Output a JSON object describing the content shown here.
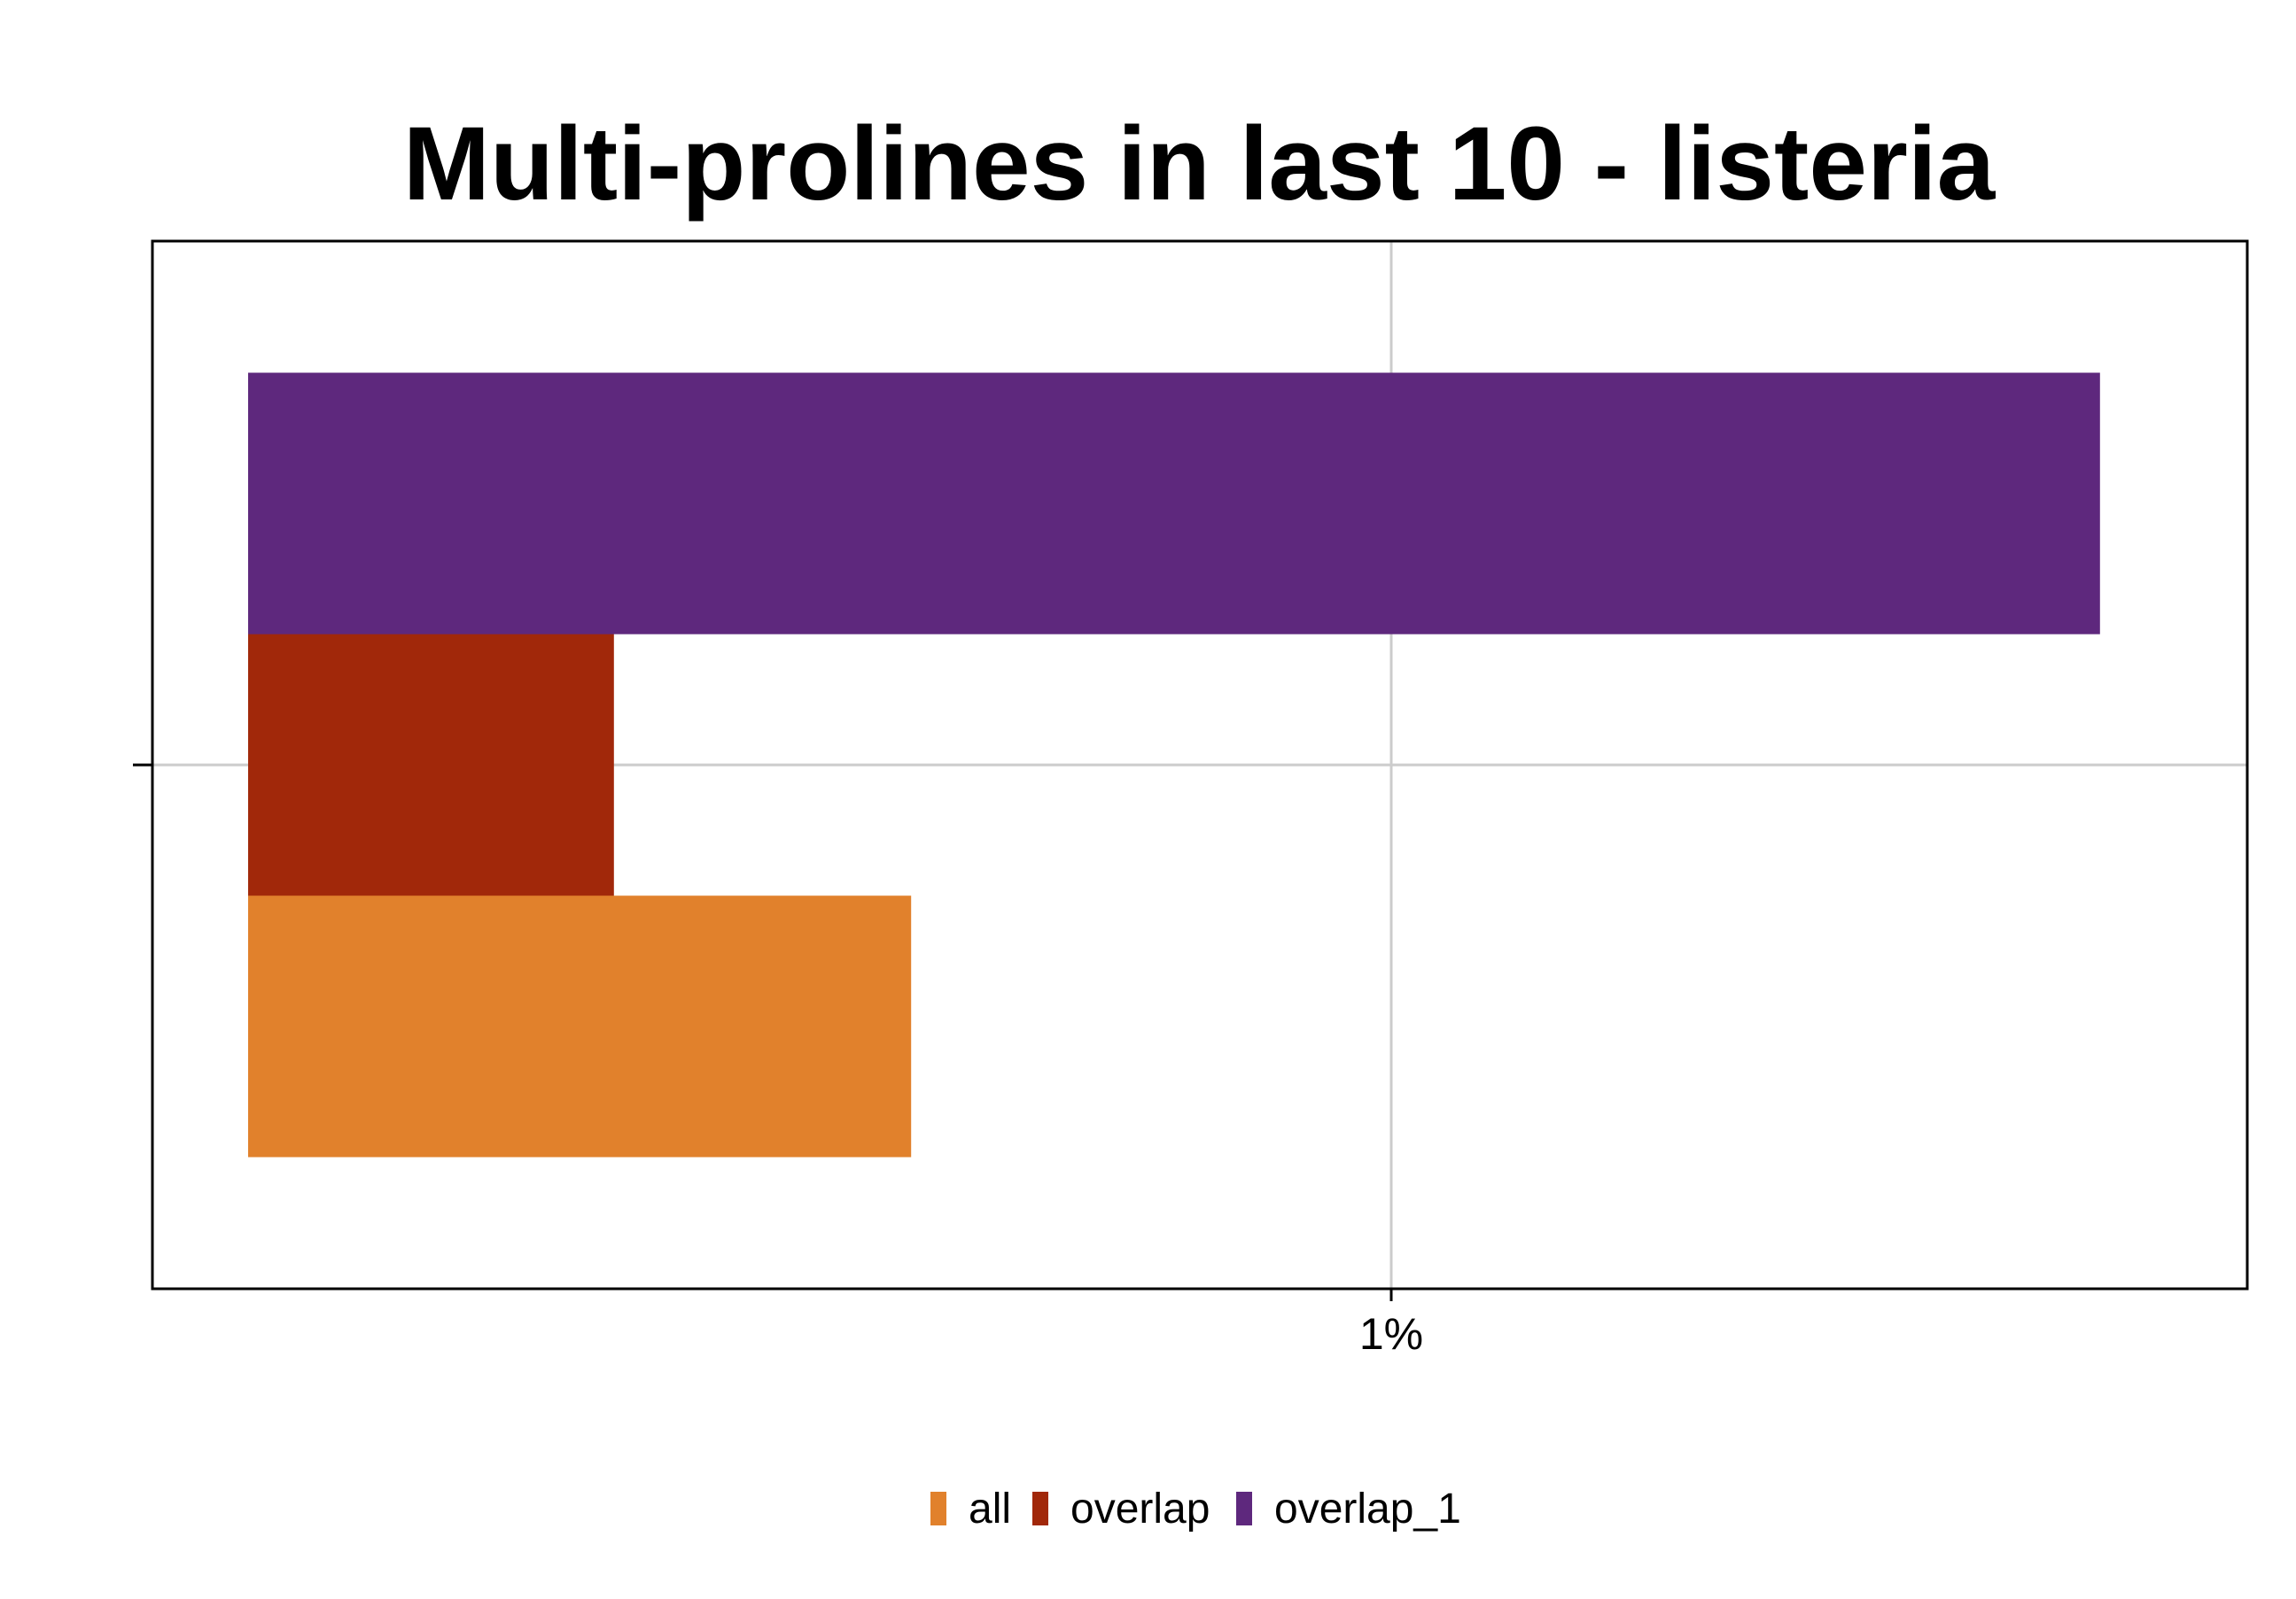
{
  "chart_data": {
    "type": "bar",
    "orientation": "horizontal",
    "title": "Multi-prolines in last 10 - listeria",
    "xlabel": "",
    "ylabel": "",
    "x_ticks": [
      {
        "value": 1.0,
        "label": "1%"
      }
    ],
    "xlim": [
      0.0,
      1.7
    ],
    "categories": [
      ""
    ],
    "series": [
      {
        "name": "all",
        "values": [
          0.58
        ],
        "color": "#E1812C"
      },
      {
        "name": "overlap",
        "values": [
          0.32
        ],
        "color": "#A1280A"
      },
      {
        "name": "overlap_1",
        "values": [
          1.62
        ],
        "color": "#5E287D"
      }
    ],
    "grid": true,
    "legend": {
      "position": "bottom",
      "entries": [
        "all",
        "overlap",
        "overlap_1"
      ]
    }
  }
}
